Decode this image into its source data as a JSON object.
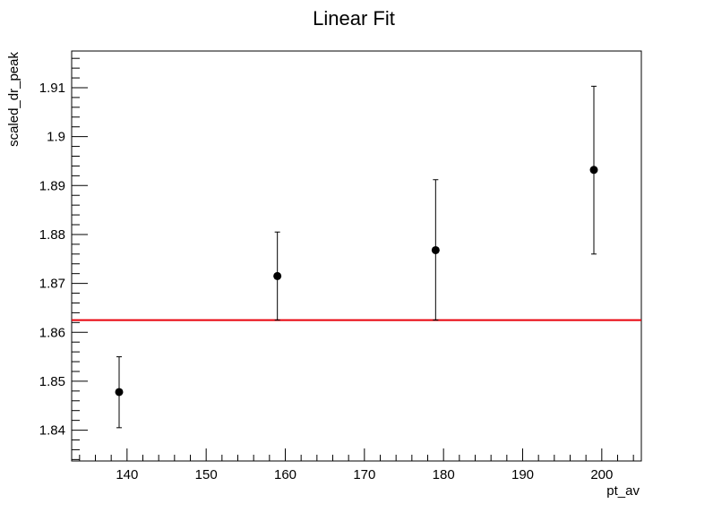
{
  "chart_data": {
    "type": "scatter",
    "title": "Linear Fit",
    "xlabel": "pt_av",
    "ylabel": "scaled_dr_peak",
    "xlim": [
      133,
      205
    ],
    "ylim": [
      1.8337,
      1.9175
    ],
    "x_ticks": [
      140,
      150,
      160,
      170,
      180,
      190,
      200
    ],
    "y_ticks": [
      1.84,
      1.85,
      1.86,
      1.87,
      1.88,
      1.89,
      1.9,
      1.91
    ],
    "grid": false,
    "legend": "none",
    "points": [
      {
        "x": 139,
        "y": 1.8478,
        "err_low": 1.8405,
        "err_high": 1.855
      },
      {
        "x": 159,
        "y": 1.8715,
        "err_low": 1.8625,
        "err_high": 1.8805
      },
      {
        "x": 179,
        "y": 1.8768,
        "err_low": 1.8625,
        "err_high": 1.8912
      },
      {
        "x": 199,
        "y": 1.8932,
        "err_low": 1.876,
        "err_high": 1.9103
      }
    ],
    "fit_line": {
      "y": 1.8625,
      "color": "#e8000b"
    },
    "marker_color": "#000000"
  }
}
